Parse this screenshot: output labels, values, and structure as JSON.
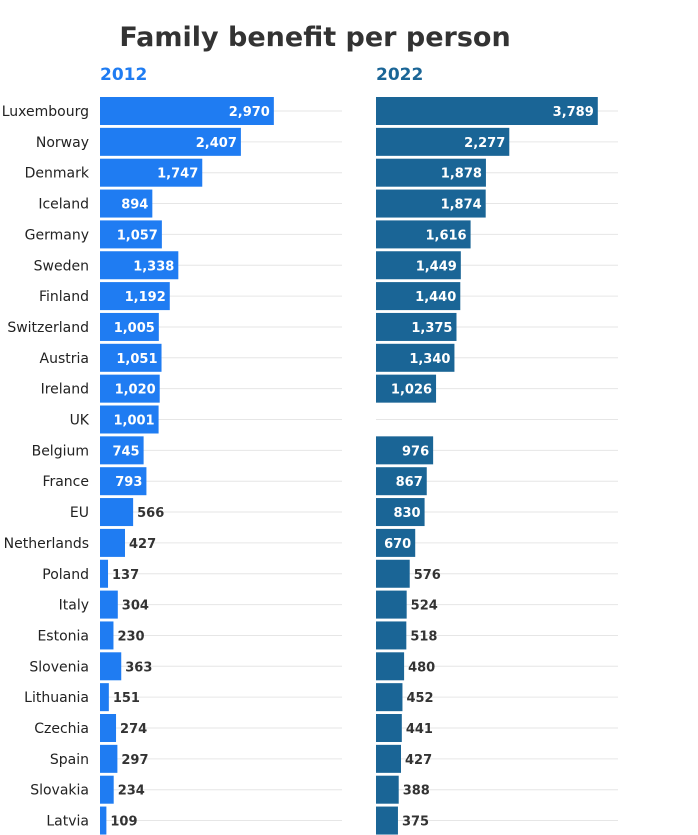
{
  "chart_data": {
    "type": "bar",
    "title": "Family benefit per person",
    "categories": [
      "Luxembourg",
      "Norway",
      "Denmark",
      "Iceland",
      "Germany",
      "Sweden",
      "Finland",
      "Switzerland",
      "Austria",
      "Ireland",
      "UK",
      "Belgium",
      "France",
      "EU",
      "Netherlands",
      "Poland",
      "Italy",
      "Estonia",
      "Slovenia",
      "Lithuania",
      "Czechia",
      "Spain",
      "Slovakia",
      "Latvia"
    ],
    "series": [
      {
        "name": "2012",
        "color": "#1f7cf2",
        "values": [
          2970,
          2407,
          1747,
          894,
          1057,
          1338,
          1192,
          1005,
          1051,
          1020,
          1001,
          745,
          793,
          566,
          427,
          137,
          304,
          230,
          363,
          151,
          274,
          297,
          234,
          109
        ],
        "labels": [
          "2,970",
          "2,407",
          "1,747",
          "894",
          "1,057",
          "1,338",
          "1,192",
          "1,005",
          "1,051",
          "1,020",
          "1,001",
          "745",
          "793",
          "566",
          "427",
          "137",
          "304",
          "230",
          "363",
          "151",
          "274",
          "297",
          "234",
          "109"
        ]
      },
      {
        "name": "2022",
        "color": "#1a6596",
        "values": [
          3789,
          2277,
          1878,
          1874,
          1616,
          1449,
          1440,
          1375,
          1340,
          1026,
          null,
          976,
          867,
          830,
          670,
          576,
          524,
          518,
          480,
          452,
          441,
          427,
          388,
          375
        ],
        "labels": [
          "3,789",
          "2,277",
          "1,878",
          "1,874",
          "1,616",
          "1,449",
          "1,440",
          "1,375",
          "1,340",
          "1,026",
          "",
          "976",
          "867",
          "830",
          "670",
          "576",
          "524",
          "518",
          "480",
          "452",
          "441",
          "427",
          "388",
          "375"
        ]
      }
    ],
    "xlabel": "",
    "ylabel": "",
    "xlim": [
      0,
      4100
    ]
  }
}
